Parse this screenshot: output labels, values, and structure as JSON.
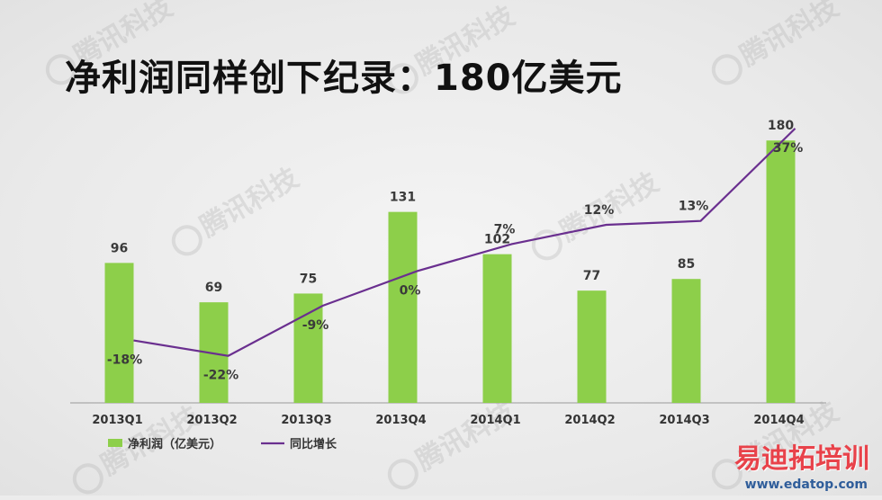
{
  "title": "净利润同样创下纪录：180亿美元",
  "watermark_text": "腾讯科技",
  "brand": {
    "name": "易迪拓培训",
    "url": "www.edatop.com"
  },
  "colors": {
    "bar": "#8dcf4a",
    "line": "#6a2f8f",
    "axis": "#9a9a9a",
    "label": "#3a3a3a"
  },
  "chart_data": {
    "type": "bar",
    "categories": [
      "2013Q1",
      "2013Q2",
      "2013Q3",
      "2013Q4",
      "2014Q1",
      "2014Q2",
      "2014Q3",
      "2014Q4"
    ],
    "series": [
      {
        "name": "净利润（亿美元）",
        "type": "bar",
        "values": [
          96,
          69,
          75,
          131,
          102,
          77,
          85,
          180
        ],
        "labels": [
          "96",
          "69",
          "75",
          "131",
          "102",
          "77",
          "85",
          "180"
        ]
      },
      {
        "name": "同比增长",
        "type": "line",
        "values": [
          -18,
          -22,
          -9,
          0,
          7,
          12,
          13,
          37
        ],
        "labels": [
          "-18%",
          "-22%",
          "-9%",
          "0%",
          "7%",
          "12%",
          "13%",
          "37%"
        ]
      }
    ],
    "ylim_bars": [
      0,
      190
    ],
    "ylim_line": [
      -30,
      40
    ],
    "legend": "bottom-left",
    "grid": false
  }
}
